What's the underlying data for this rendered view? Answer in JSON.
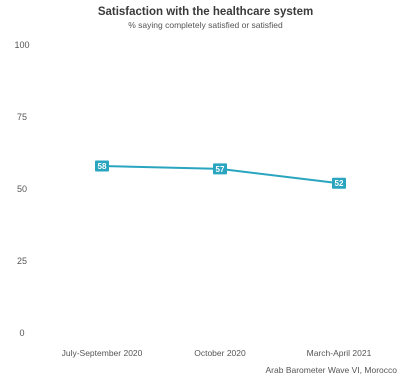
{
  "chart_data": {
    "type": "line",
    "title": "Satisfaction with the healthcare system",
    "subtitle": "% saying completely satisfied or satisfied",
    "categories": [
      "July-September 2020",
      "October 2020",
      "March-April 2021"
    ],
    "series": [
      {
        "values": [
          58,
          57,
          52
        ]
      }
    ],
    "ylim": [
      0,
      100
    ],
    "yticks": [
      0,
      25,
      50,
      75,
      100
    ],
    "grid": false,
    "data_labels": true,
    "source": "Arab Barometer Wave VI, Morocco",
    "colors": {
      "line": "#2aa5bf",
      "label_bg": "#2aa5bf",
      "label_text": "#ffffff",
      "axis_text": "#555555"
    }
  }
}
